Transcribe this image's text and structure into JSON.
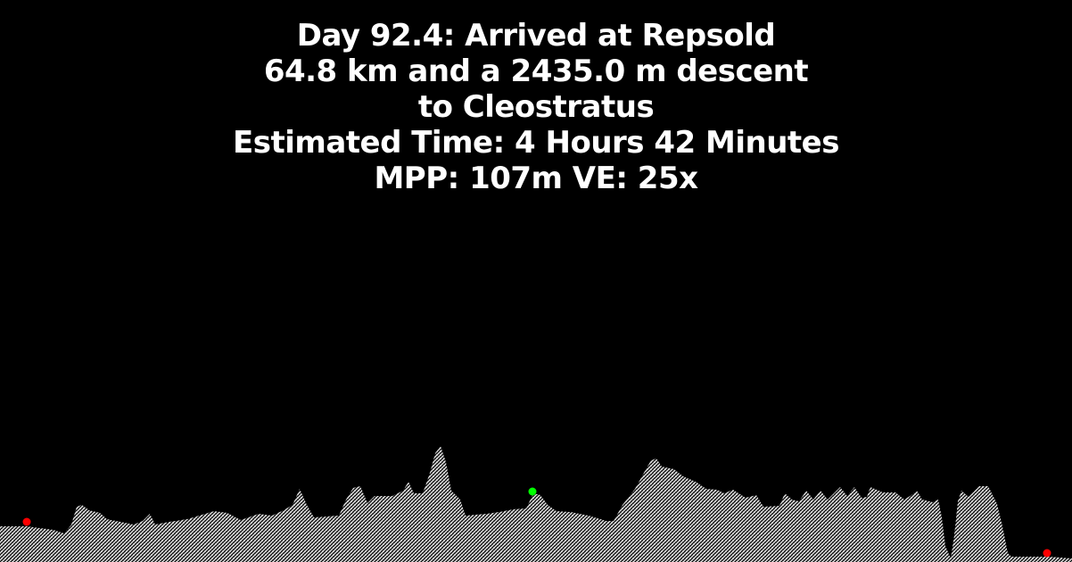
{
  "header": {
    "line1": "Day 92.4: Arrived at Repsold",
    "line2": "64.8 km and a 2435.0 m descent",
    "line3": "to Cleostratus",
    "line4": "Estimated Time: 4 Hours 42 Minutes",
    "line5": "MPP: 107m VE: 25x"
  },
  "colors": {
    "background": "#000000",
    "text": "#ffffff",
    "terrain": "#d9d9d9",
    "start_end_marker": "#ff0000",
    "current_marker": "#00ff00"
  }
}
